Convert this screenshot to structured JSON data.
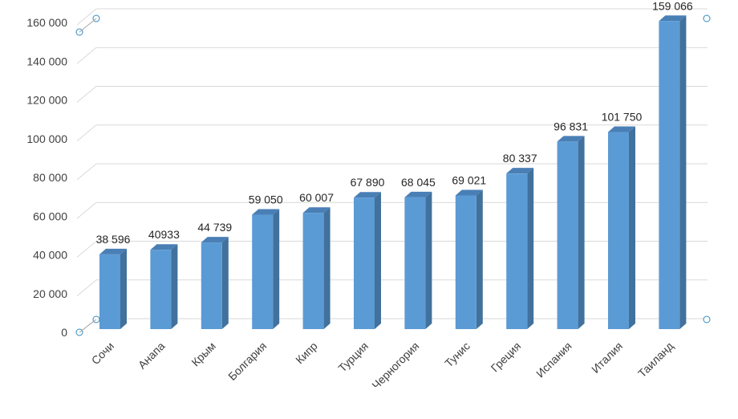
{
  "chart_data": {
    "type": "bar",
    "categories": [
      "Сочи",
      "Анапа",
      "Крым",
      "Болгария",
      "Кипр",
      "Турция",
      "Черногория",
      "Тунис",
      "Греция",
      "Испания",
      "Италия",
      "Таиланд"
    ],
    "values": [
      38596,
      40933,
      44739,
      59050,
      60007,
      67890,
      68045,
      69021,
      80337,
      96831,
      101750,
      159066
    ],
    "data_labels": [
      "38 596",
      "40933",
      "44 739",
      "59 050",
      "60 007",
      "67 890",
      "68 045",
      "69 021",
      "80 337",
      "96 831",
      "101 750",
      "159 066"
    ],
    "y_ticks": [
      0,
      20000,
      40000,
      60000,
      80000,
      100000,
      120000,
      140000,
      160000
    ],
    "y_tick_labels": [
      "0",
      "20 000",
      "40 000",
      "60 000",
      "80 000",
      "100 000",
      "120 000",
      "140 000",
      "160 000"
    ],
    "ylim": [
      0,
      160000
    ],
    "grid": true,
    "style": "3d-column",
    "colors": {
      "bar_front": "#5b9bd5",
      "bar_side": "#41719c",
      "bar_top": "#4a7fb6",
      "grid": "#d9d9d9",
      "handle": "#2e8bc0"
    }
  }
}
